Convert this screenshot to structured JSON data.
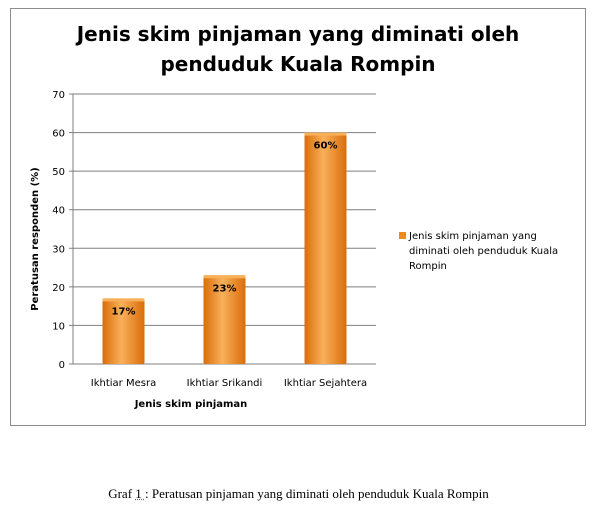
{
  "chart_data": {
    "type": "bar",
    "title_lines": [
      "Jenis skim pinjaman yang diminati oleh",
      "penduduk Kuala Rompin"
    ],
    "xlabel": "Jenis skim pinjaman",
    "ylabel": "Peratusan responden (%)",
    "categories": [
      "Ikhtiar Mesra",
      "Ikhtiar Srikandi",
      "Ikhtiar Sejahtera"
    ],
    "series": [
      {
        "name": "Jenis skim pinjaman yang diminati oleh penduduk Kuala Rompin",
        "name_lines": [
          "Jenis skim pinjaman yang",
          "diminati oleh penduduk Kuala",
          "Rompin"
        ],
        "values": [
          17,
          23,
          60
        ],
        "data_labels": [
          "17%",
          "23%",
          "60%"
        ]
      }
    ],
    "ylim": [
      0,
      70
    ],
    "yticks": [
      0,
      10,
      20,
      30,
      40,
      50,
      60,
      70
    ],
    "grid": true,
    "legend_position": "right",
    "colors": {
      "bar": "#f28a1a",
      "bar_light": "#f9b05a",
      "bar_dark": "#d96d0a",
      "grid": "#7f7f7f"
    }
  },
  "caption": {
    "prefix": "Graf ",
    "number": "1 ",
    "text": ": Peratusan pinjaman  yang diminati oleh penduduk Kuala Rompin"
  }
}
